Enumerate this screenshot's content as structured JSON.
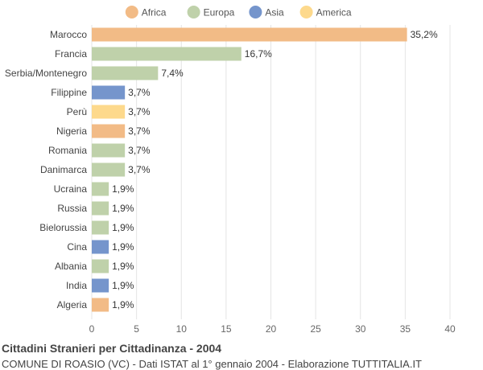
{
  "chart_data": {
    "type": "bar",
    "orientation": "horizontal",
    "categories": [
      "Marocco",
      "Francia",
      "Serbia/Montenegro",
      "Filippine",
      "Perù",
      "Nigeria",
      "Romania",
      "Danimarca",
      "Ucraina",
      "Russia",
      "Bielorussia",
      "Cina",
      "Albania",
      "India",
      "Algeria"
    ],
    "values": [
      35.2,
      16.7,
      7.4,
      3.7,
      3.7,
      3.7,
      3.7,
      3.7,
      1.9,
      1.9,
      1.9,
      1.9,
      1.9,
      1.9,
      1.9
    ],
    "value_labels": [
      "35,2%",
      "16,7%",
      "7,4%",
      "3,7%",
      "3,7%",
      "3,7%",
      "3,7%",
      "3,7%",
      "1,9%",
      "1,9%",
      "1,9%",
      "1,9%",
      "1,9%",
      "1,9%",
      "1,9%"
    ],
    "groups": [
      "Africa",
      "Europa",
      "Europa",
      "Asia",
      "America",
      "Africa",
      "Europa",
      "Europa",
      "Europa",
      "Europa",
      "Europa",
      "Asia",
      "Europa",
      "Asia",
      "Africa"
    ],
    "legend": [
      {
        "name": "Africa",
        "color": "#f2bb86"
      },
      {
        "name": "Europa",
        "color": "#bfd1aa"
      },
      {
        "name": "Asia",
        "color": "#7595cc"
      },
      {
        "name": "America",
        "color": "#fdd98c"
      }
    ],
    "xlim": [
      0,
      40
    ],
    "xticks": [
      0,
      5,
      10,
      15,
      20,
      25,
      30,
      35,
      40
    ],
    "grid": true,
    "legend_position": "top-center"
  },
  "footer": {
    "title": "Cittadini Stranieri per Cittadinanza - 2004",
    "subtitle": "COMUNE DI ROASIO (VC) - Dati ISTAT al 1° gennaio 2004 - Elaborazione TUTTITALIA.IT"
  }
}
